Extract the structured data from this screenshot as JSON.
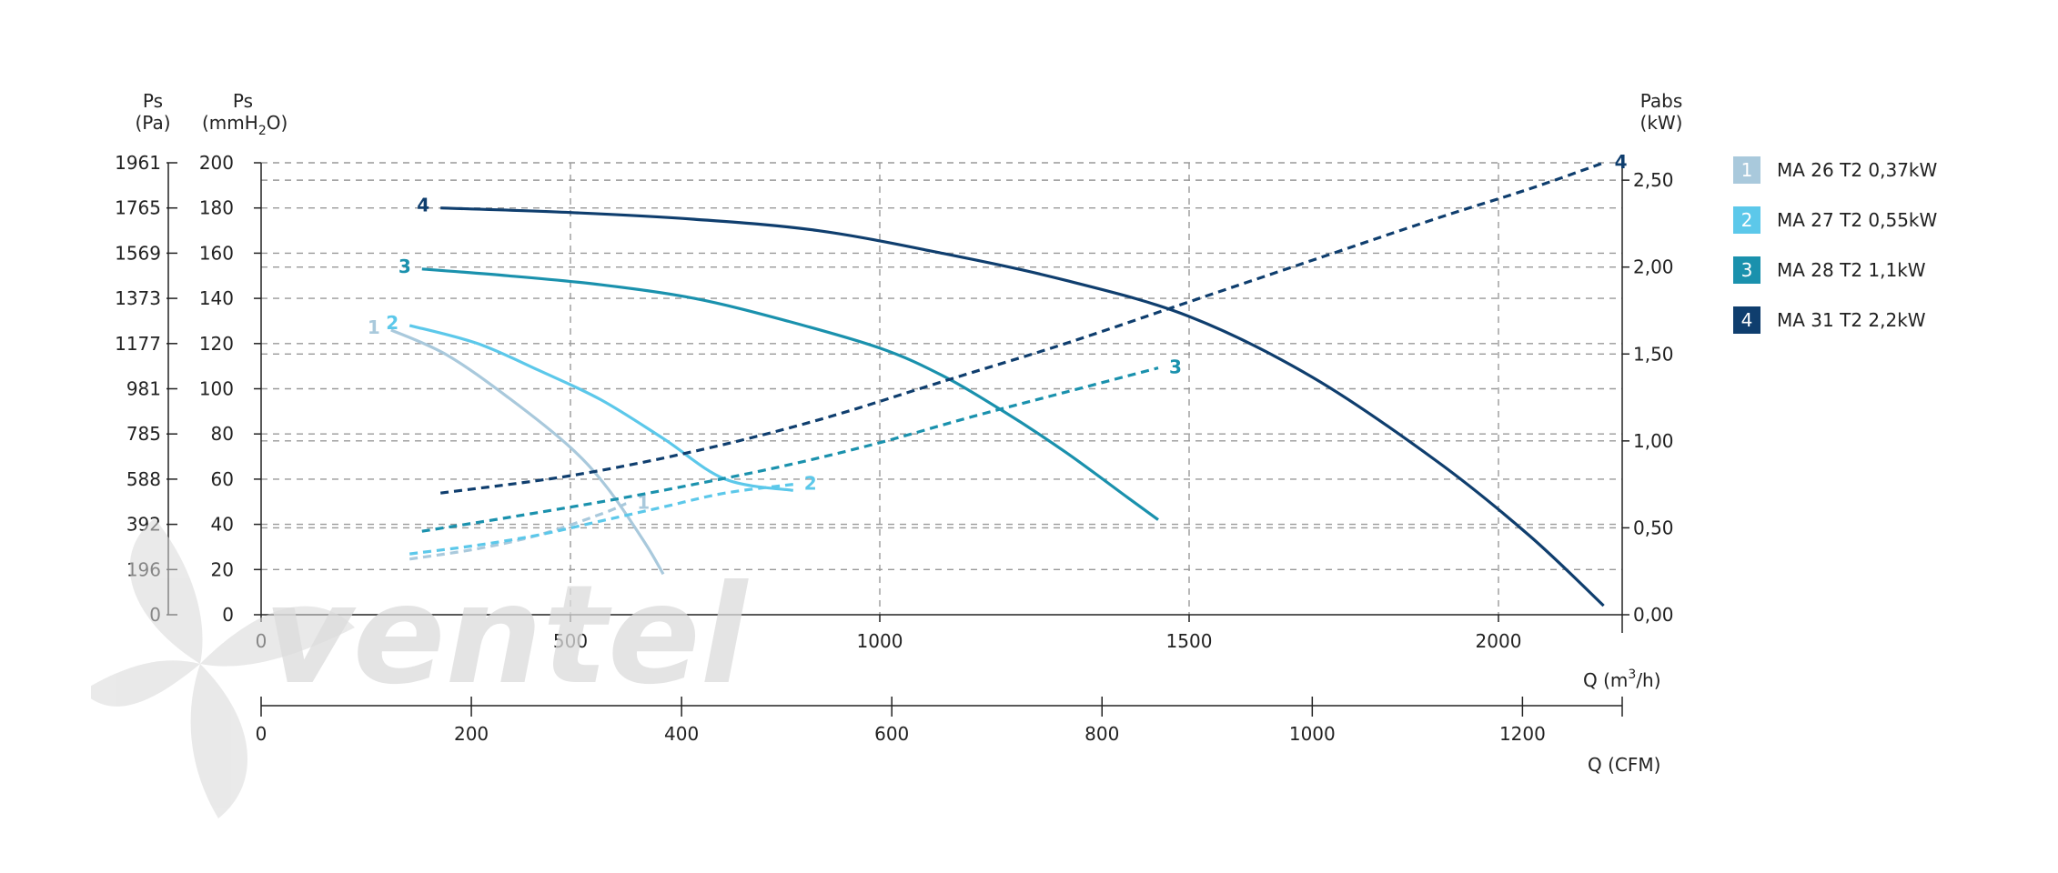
{
  "colors": {
    "grid": "#999999",
    "axis": "#222222",
    "watermark_grey": "#d8d8d8",
    "watermark_blue": "#dbeaf5"
  },
  "watermark": {
    "text": "ventel"
  },
  "chart_data": {
    "type": "line",
    "axes": {
      "left_pa": {
        "title_line1": "Ps",
        "title_line2": "(Pa)",
        "ticks": [
          {
            "v": 0,
            "label": "0"
          },
          {
            "v": 20,
            "label": "196"
          },
          {
            "v": 40,
            "label": "392"
          },
          {
            "v": 60,
            "label": "588"
          },
          {
            "v": 80,
            "label": "785"
          },
          {
            "v": 100,
            "label": "981"
          },
          {
            "v": 120,
            "label": "1177"
          },
          {
            "v": 140,
            "label": "1373"
          },
          {
            "v": 160,
            "label": "1569"
          },
          {
            "v": 180,
            "label": "1765"
          },
          {
            "v": 200,
            "label": "1961"
          }
        ]
      },
      "left_mm": {
        "title_line1": "Ps",
        "title_line2": "(mmH",
        "title_sub": "2",
        "title_end": "O)",
        "range": [
          0,
          200
        ],
        "ticks": [
          {
            "v": 0,
            "label": "0"
          },
          {
            "v": 20,
            "label": "20"
          },
          {
            "v": 40,
            "label": "40"
          },
          {
            "v": 60,
            "label": "60"
          },
          {
            "v": 80,
            "label": "80"
          },
          {
            "v": 100,
            "label": "100"
          },
          {
            "v": 120,
            "label": "120"
          },
          {
            "v": 140,
            "label": "140"
          },
          {
            "v": 160,
            "label": "160"
          },
          {
            "v": 180,
            "label": "180"
          },
          {
            "v": 200,
            "label": "200"
          }
        ]
      },
      "right_kw": {
        "title_line1": "Pabs",
        "title_line2": "(kW)",
        "range": [
          0,
          2.6
        ],
        "ticks": [
          {
            "v": 0,
            "label": "0,00"
          },
          {
            "v": 0.5,
            "label": "0,50"
          },
          {
            "v": 1.0,
            "label": "1,00"
          },
          {
            "v": 1.5,
            "label": "1,50"
          },
          {
            "v": 2.0,
            "label": "2,00"
          },
          {
            "v": 2.5,
            "label": "2,50"
          }
        ]
      },
      "x_m3h": {
        "title": "Q (m",
        "title_sup": "3",
        "title_end": "/h)",
        "range": [
          0,
          2200
        ],
        "ticks": [
          {
            "v": 0,
            "label": "0"
          },
          {
            "v": 500,
            "label": "500"
          },
          {
            "v": 1000,
            "label": "1000"
          },
          {
            "v": 1500,
            "label": "1500"
          },
          {
            "v": 2000,
            "label": "2000"
          }
        ]
      },
      "x_cfm": {
        "title": "Q (CFM)",
        "range": [
          0,
          1295
        ],
        "ticks": [
          {
            "v": 0,
            "label": "0"
          },
          {
            "v": 200,
            "label": "200"
          },
          {
            "v": 400,
            "label": "400"
          },
          {
            "v": 600,
            "label": "600"
          },
          {
            "v": 800,
            "label": "800"
          },
          {
            "v": 1000,
            "label": "1000"
          },
          {
            "v": 1200,
            "label": "1200"
          }
        ]
      }
    },
    "grid": true,
    "series": [
      {
        "id": "1",
        "name": "MA 26 T2 0,37kW",
        "color": "#a9c9dc",
        "pressure_mmh2o": [
          [
            210,
            126
          ],
          [
            300,
            115
          ],
          [
            400,
            96
          ],
          [
            500,
            74
          ],
          [
            560,
            56
          ],
          [
            620,
            32
          ],
          [
            650,
            18
          ]
        ],
        "power_kw": [
          [
            240,
            0.32
          ],
          [
            350,
            0.38
          ],
          [
            450,
            0.46
          ],
          [
            550,
            0.58
          ],
          [
            590,
            0.64
          ]
        ]
      },
      {
        "id": "2",
        "name": "MA 27 T2 0,55kW",
        "color": "#5cc8ea",
        "pressure_mmh2o": [
          [
            240,
            128
          ],
          [
            350,
            120
          ],
          [
            450,
            108
          ],
          [
            550,
            95
          ],
          [
            650,
            78
          ],
          [
            750,
            60
          ],
          [
            860,
            55
          ]
        ],
        "power_kw": [
          [
            240,
            0.35
          ],
          [
            350,
            0.4
          ],
          [
            450,
            0.46
          ],
          [
            550,
            0.54
          ],
          [
            650,
            0.62
          ],
          [
            750,
            0.7
          ],
          [
            860,
            0.75
          ]
        ]
      },
      {
        "id": "3",
        "name": "MA 28 T2 1,1kW",
        "color": "#1a91ad",
        "pressure_mmh2o": [
          [
            260,
            153
          ],
          [
            400,
            150
          ],
          [
            550,
            146
          ],
          [
            700,
            140
          ],
          [
            850,
            130
          ],
          [
            1000,
            118
          ],
          [
            1100,
            106
          ],
          [
            1200,
            90
          ],
          [
            1300,
            72
          ],
          [
            1400,
            52
          ],
          [
            1450,
            42
          ]
        ],
        "power_kw": [
          [
            260,
            0.48
          ],
          [
            400,
            0.56
          ],
          [
            550,
            0.65
          ],
          [
            700,
            0.75
          ],
          [
            850,
            0.86
          ],
          [
            1000,
            0.99
          ],
          [
            1150,
            1.14
          ],
          [
            1300,
            1.28
          ],
          [
            1450,
            1.42
          ]
        ]
      },
      {
        "id": "4",
        "name": "MA 31 T2 2,2kW",
        "color": "#0f3e6e",
        "pressure_mmh2o": [
          [
            290,
            180
          ],
          [
            500,
            178
          ],
          [
            700,
            175
          ],
          [
            900,
            170
          ],
          [
            1100,
            160
          ],
          [
            1300,
            148
          ],
          [
            1500,
            132
          ],
          [
            1700,
            105
          ],
          [
            1900,
            68
          ],
          [
            2050,
            35
          ],
          [
            2170,
            4
          ]
        ],
        "power_kw": [
          [
            290,
            0.7
          ],
          [
            500,
            0.8
          ],
          [
            700,
            0.94
          ],
          [
            900,
            1.12
          ],
          [
            1100,
            1.34
          ],
          [
            1300,
            1.56
          ],
          [
            1500,
            1.8
          ],
          [
            1700,
            2.04
          ],
          [
            1900,
            2.28
          ],
          [
            2050,
            2.45
          ],
          [
            2170,
            2.6
          ]
        ]
      }
    ]
  }
}
